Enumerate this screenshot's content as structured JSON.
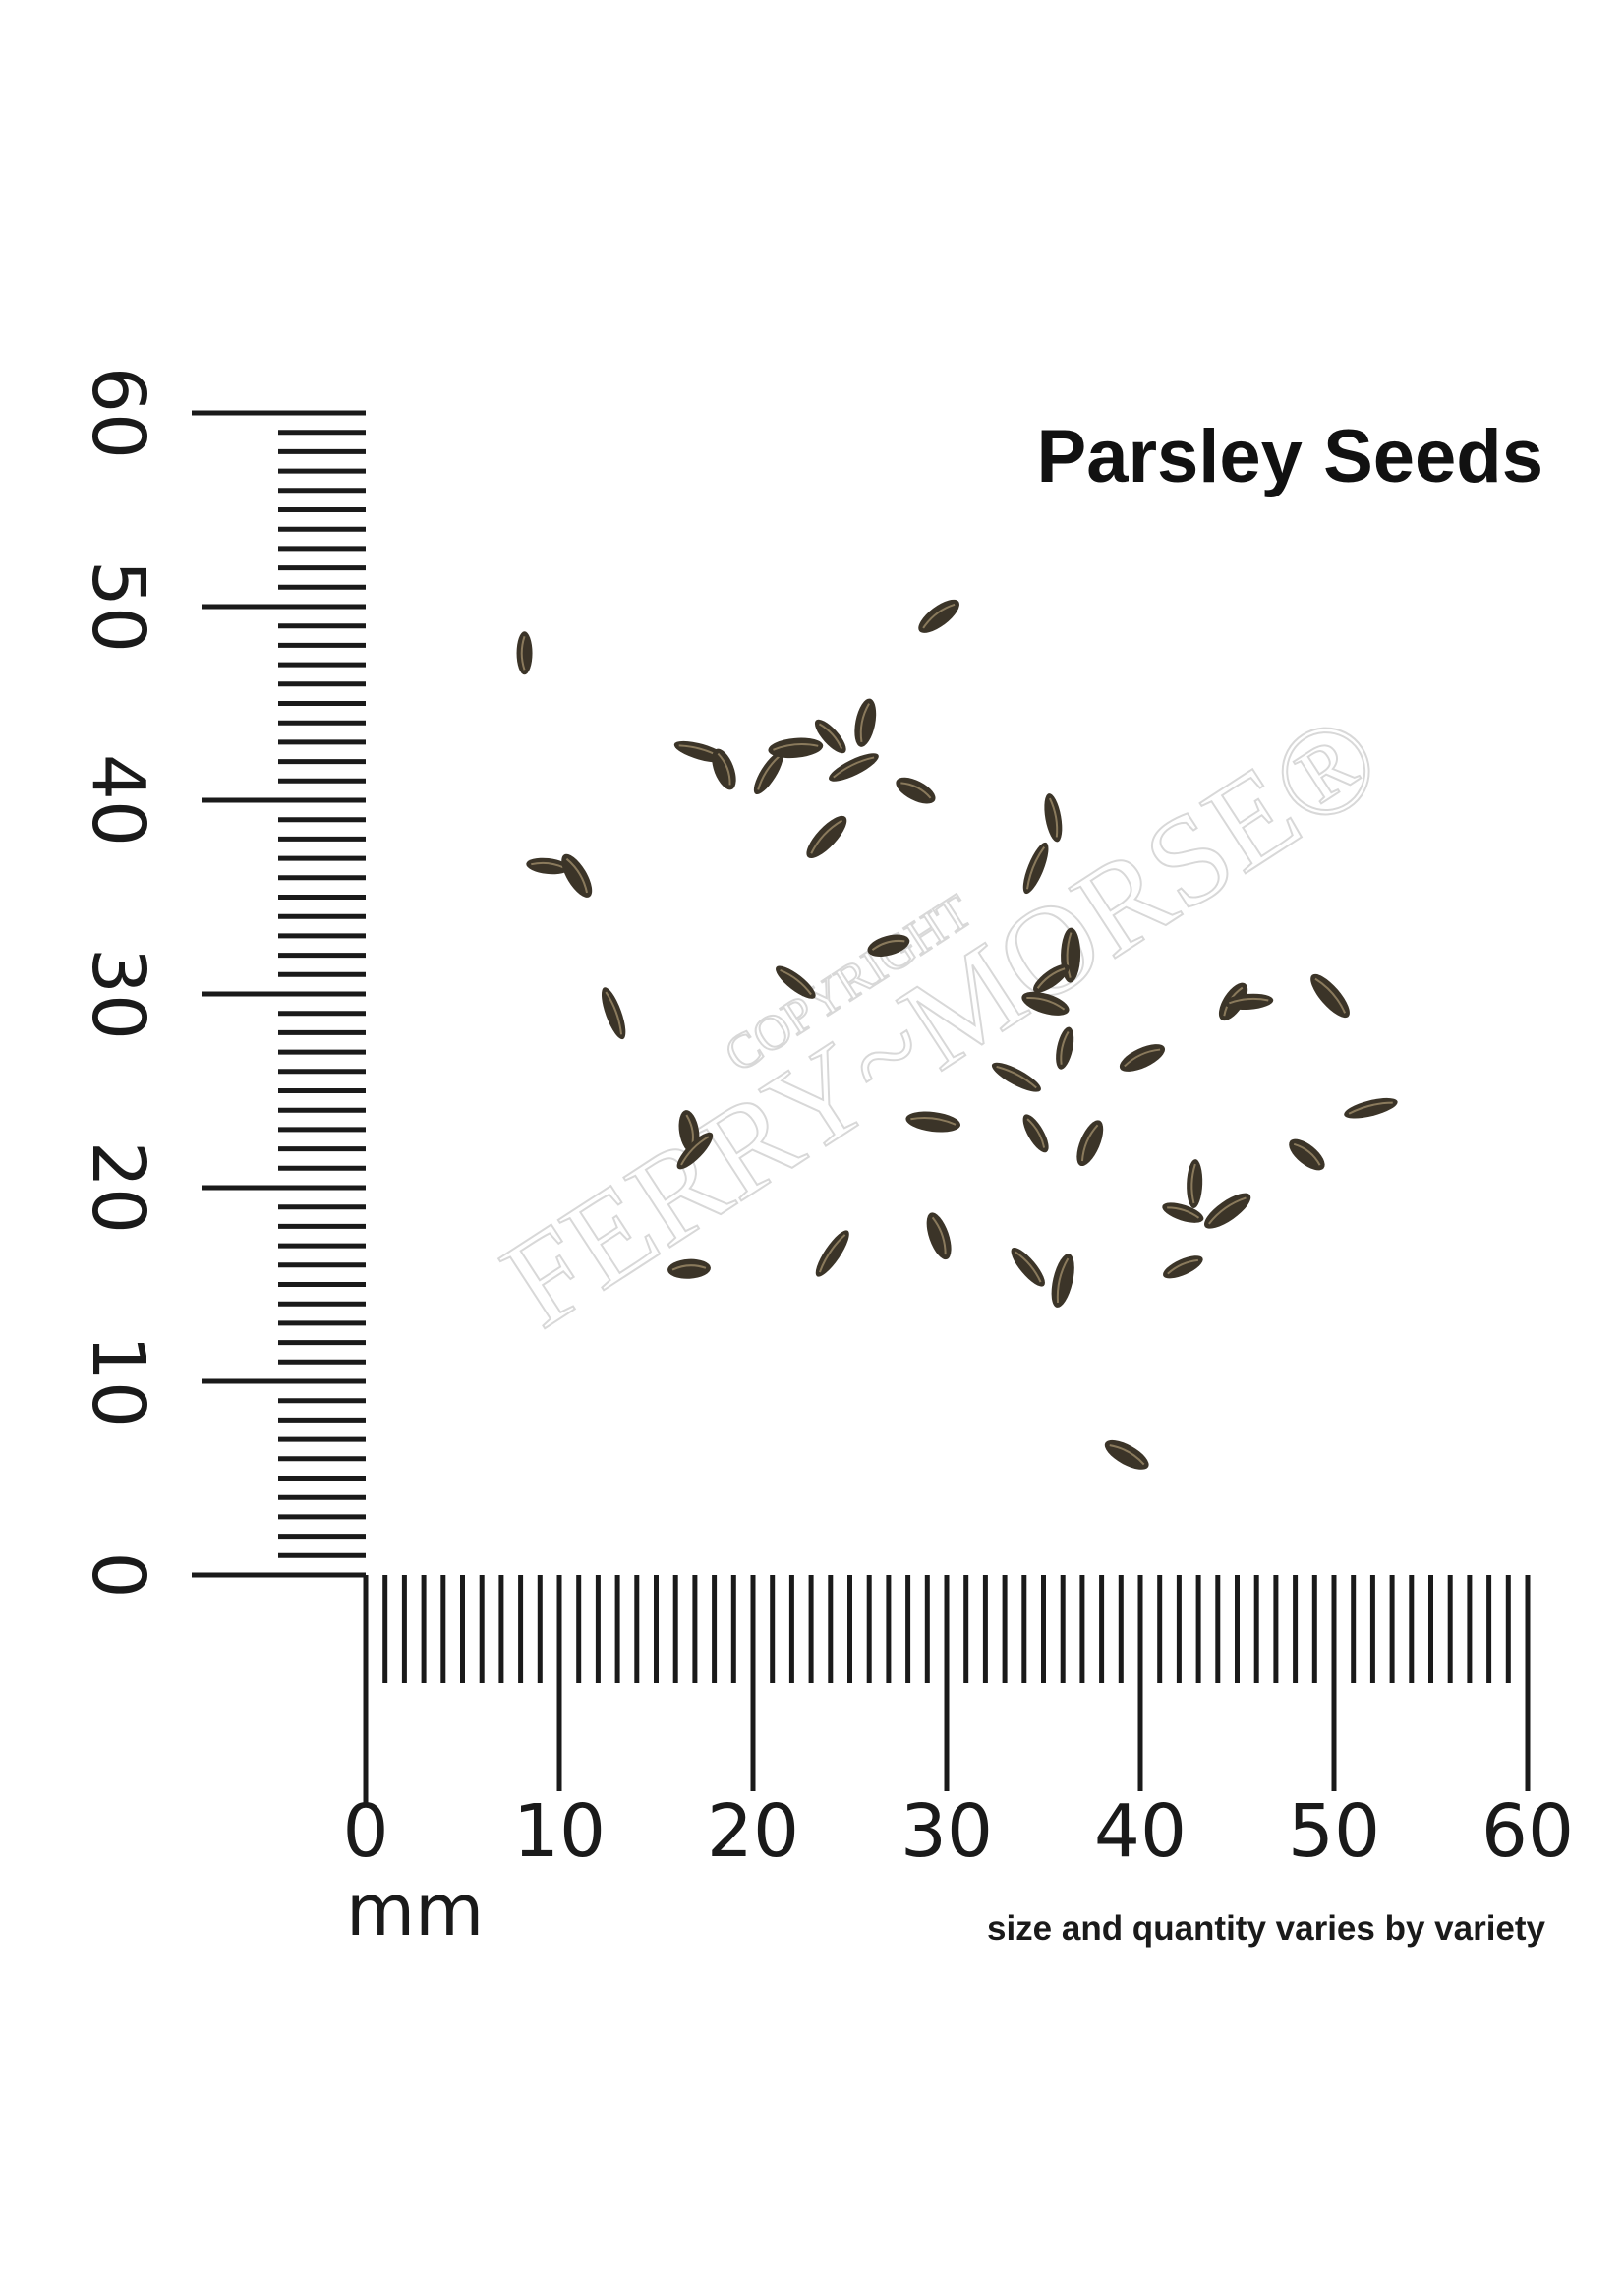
{
  "title": "Parsley Seeds",
  "note": "size and quantity varies by variety",
  "unit": "mm",
  "watermark": {
    "line1": "COPYRIGHT",
    "line2": "FERRY~MORSE®"
  },
  "colors": {
    "ink": "#1a1a1a",
    "seed_dark": "#3b3428",
    "seed_light": "#8a7a5c"
  },
  "chart_data": {
    "type": "scatter",
    "title": "Parsley Seeds",
    "xlabel": "mm",
    "x_ticks": [
      "0",
      "10",
      "20",
      "30",
      "40",
      "50",
      "60"
    ],
    "y_ticks": [
      "0",
      "10",
      "20",
      "30",
      "40",
      "50",
      "60"
    ],
    "xlim": [
      0,
      60
    ],
    "ylim": [
      0,
      60
    ],
    "minor_tick_step_mm": 1,
    "seeds_mm": [
      [
        8.2,
        47.6
      ],
      [
        29.6,
        49.5
      ],
      [
        17.3,
        42.5
      ],
      [
        18.5,
        41.6
      ],
      [
        20.8,
        41.4
      ],
      [
        22.2,
        42.7
      ],
      [
        24.0,
        43.3
      ],
      [
        25.8,
        44.0
      ],
      [
        25.2,
        41.7
      ],
      [
        28.4,
        40.5
      ],
      [
        35.5,
        39.1
      ],
      [
        23.8,
        38.1
      ],
      [
        9.4,
        36.6
      ],
      [
        10.9,
        36.1
      ],
      [
        34.6,
        36.5
      ],
      [
        27.0,
        32.5
      ],
      [
        22.2,
        30.6
      ],
      [
        36.4,
        32.0
      ],
      [
        35.4,
        30.8
      ],
      [
        35.1,
        29.5
      ],
      [
        12.8,
        29.0
      ],
      [
        44.8,
        29.6
      ],
      [
        45.6,
        29.6
      ],
      [
        49.8,
        29.9
      ],
      [
        36.1,
        27.2
      ],
      [
        40.1,
        26.7
      ],
      [
        33.6,
        25.7
      ],
      [
        16.7,
        22.9
      ],
      [
        17.0,
        21.9
      ],
      [
        29.3,
        23.4
      ],
      [
        34.6,
        22.8
      ],
      [
        37.4,
        22.3
      ],
      [
        51.9,
        24.1
      ],
      [
        48.6,
        21.7
      ],
      [
        42.8,
        20.2
      ],
      [
        44.5,
        18.8
      ],
      [
        42.2,
        18.7
      ],
      [
        29.6,
        17.5
      ],
      [
        24.1,
        16.6
      ],
      [
        16.7,
        15.8
      ],
      [
        34.2,
        15.9
      ],
      [
        36.0,
        15.2
      ],
      [
        42.2,
        15.9
      ],
      [
        39.3,
        6.2
      ]
    ]
  }
}
